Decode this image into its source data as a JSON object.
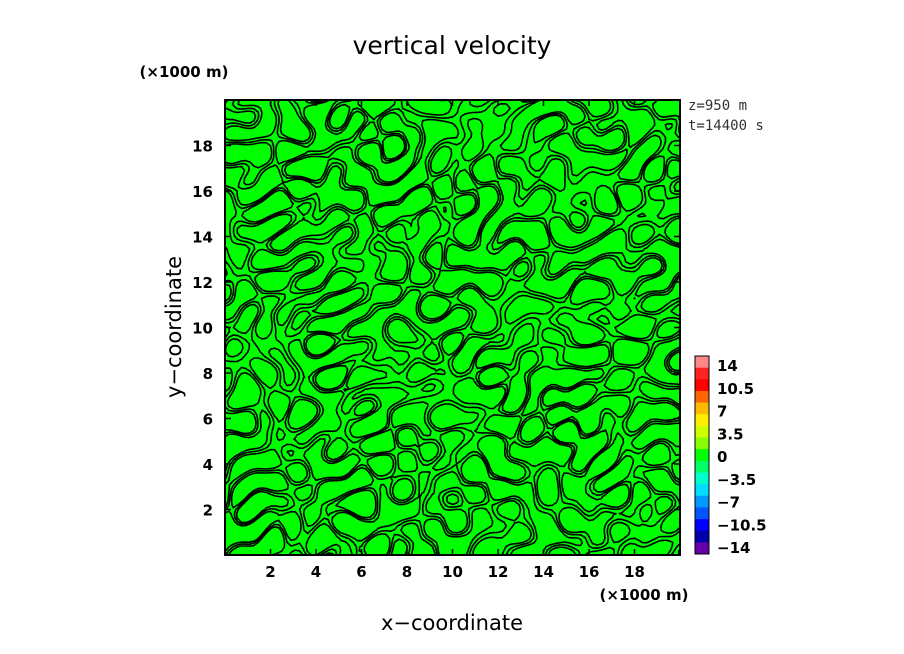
{
  "chart_data": {
    "type": "contour",
    "title": "vertical velocity",
    "xlabel": "x−coordinate",
    "ylabel": "y−coordinate",
    "x_unit": "(×1000 m)",
    "y_unit": "(×1000 m)",
    "xlim": [
      0,
      20
    ],
    "ylim": [
      0,
      20
    ],
    "x_ticks": [
      2,
      4,
      6,
      8,
      10,
      12,
      14,
      16,
      18
    ],
    "y_ticks": [
      2,
      4,
      6,
      8,
      10,
      12,
      14,
      16,
      18
    ],
    "annotations": [
      "z=950 m",
      "t=14400 s"
    ],
    "fill_color": "#00ff00",
    "contour_color": "#000000",
    "colorbar": {
      "labels": [
        "14",
        "10.5",
        "7",
        "3.5",
        "0",
        "−3.5",
        "−7",
        "−10.5",
        "−14"
      ],
      "colors": [
        "#ff8888",
        "#ff2222",
        "#ff0000",
        "#ff6600",
        "#ffbb00",
        "#ffee00",
        "#ccff00",
        "#88ff00",
        "#00ff00",
        "#00ff66",
        "#00ffcc",
        "#00ddff",
        "#0099ff",
        "#0055ff",
        "#0000ff",
        "#0000aa",
        "#6600aa"
      ]
    }
  }
}
